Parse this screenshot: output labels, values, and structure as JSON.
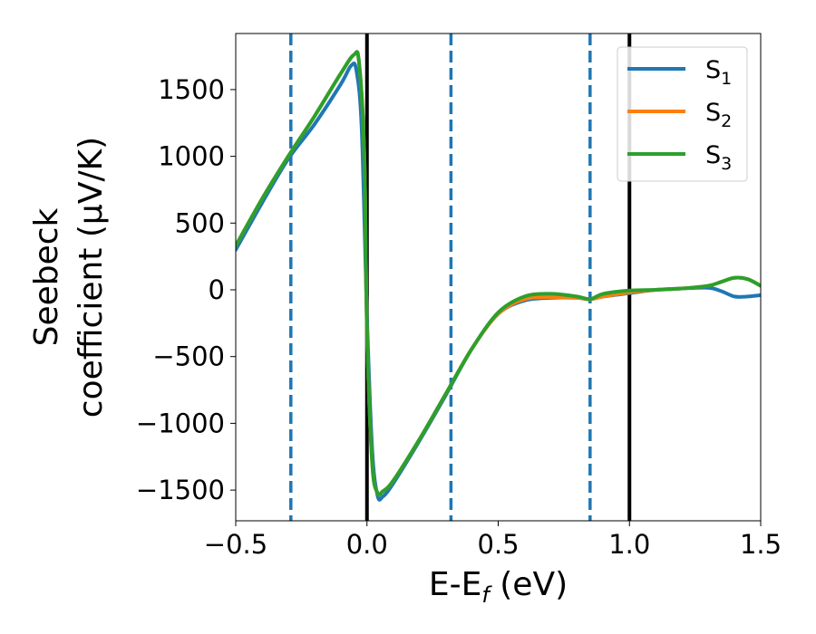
{
  "chart_data": {
    "type": "line",
    "xlabel": {
      "main": "E-E",
      "sub": "f",
      "units": " (eV)"
    },
    "ylabel": {
      "line1": "Seebeck",
      "line2": "coefficient  (μV/K)"
    },
    "xlim": [
      -0.5,
      1.5
    ],
    "ylim": [
      -1730,
      1920
    ],
    "xticks": [
      -0.5,
      0.0,
      0.5,
      1.0,
      1.5
    ],
    "xtick_labels": [
      "−0.5",
      "0.0",
      "0.5",
      "1.0",
      "1.5"
    ],
    "yticks": [
      -1500,
      -1000,
      -500,
      0,
      500,
      1000,
      1500
    ],
    "ytick_labels": [
      "−1500",
      "−1000",
      "−500",
      "0",
      "500",
      "1000",
      "1500"
    ],
    "grid": false,
    "legend_position": "top-right",
    "vlines": [
      {
        "x": -0.29,
        "style": "dashed",
        "color": "#1f77b4"
      },
      {
        "x": 0.0,
        "style": "solid",
        "color": "#000000"
      },
      {
        "x": 0.32,
        "style": "dashed",
        "color": "#1f77b4"
      },
      {
        "x": 0.85,
        "style": "dashed",
        "color": "#1f77b4"
      },
      {
        "x": 1.0,
        "style": "solid",
        "color": "#000000"
      }
    ],
    "series": [
      {
        "name": "S",
        "sub": "1",
        "color": "#1f77b4",
        "points": [
          [
            -0.5,
            300
          ],
          [
            -0.4,
            650
          ],
          [
            -0.3,
            980
          ],
          [
            -0.2,
            1240
          ],
          [
            -0.1,
            1540
          ],
          [
            -0.06,
            1680
          ],
          [
            -0.04,
            1640
          ],
          [
            -0.02,
            1200
          ],
          [
            0.0,
            -200
          ],
          [
            0.02,
            -1200
          ],
          [
            0.04,
            -1540
          ],
          [
            0.06,
            -1550
          ],
          [
            0.1,
            -1450
          ],
          [
            0.2,
            -1130
          ],
          [
            0.3,
            -790
          ],
          [
            0.4,
            -440
          ],
          [
            0.5,
            -180
          ],
          [
            0.6,
            -80
          ],
          [
            0.7,
            -60
          ],
          [
            0.8,
            -60
          ],
          [
            0.85,
            -70
          ],
          [
            0.9,
            -50
          ],
          [
            1.0,
            -25
          ],
          [
            1.1,
            0
          ],
          [
            1.2,
            10
          ],
          [
            1.3,
            15
          ],
          [
            1.35,
            -10
          ],
          [
            1.4,
            -50
          ],
          [
            1.45,
            -50
          ],
          [
            1.5,
            -40
          ]
        ]
      },
      {
        "name": "S",
        "sub": "2",
        "color": "#ff7f0e",
        "points": [
          [
            -0.5,
            330
          ],
          [
            -0.4,
            680
          ],
          [
            -0.3,
            1000
          ],
          [
            -0.2,
            1300
          ],
          [
            -0.1,
            1620
          ],
          [
            -0.05,
            1760
          ],
          [
            -0.03,
            1700
          ],
          [
            -0.01,
            1000
          ],
          [
            0.0,
            -300
          ],
          [
            0.02,
            -1300
          ],
          [
            0.04,
            -1520
          ],
          [
            0.06,
            -1510
          ],
          [
            0.1,
            -1430
          ],
          [
            0.2,
            -1120
          ],
          [
            0.3,
            -780
          ],
          [
            0.4,
            -440
          ],
          [
            0.5,
            -180
          ],
          [
            0.6,
            -70
          ],
          [
            0.7,
            -55
          ],
          [
            0.8,
            -60
          ],
          [
            0.85,
            -70
          ],
          [
            0.9,
            -50
          ],
          [
            1.0,
            -20
          ],
          [
            1.1,
            0
          ],
          [
            1.2,
            10
          ],
          [
            1.3,
            30
          ],
          [
            1.35,
            60
          ],
          [
            1.4,
            90
          ],
          [
            1.45,
            80
          ],
          [
            1.5,
            30
          ]
        ]
      },
      {
        "name": "S",
        "sub": "3",
        "color": "#2ca02c",
        "points": [
          [
            -0.5,
            330
          ],
          [
            -0.4,
            680
          ],
          [
            -0.3,
            1000
          ],
          [
            -0.2,
            1300
          ],
          [
            -0.1,
            1620
          ],
          [
            -0.05,
            1760
          ],
          [
            -0.03,
            1700
          ],
          [
            -0.01,
            1000
          ],
          [
            0.0,
            -300
          ],
          [
            0.02,
            -1300
          ],
          [
            0.04,
            -1520
          ],
          [
            0.06,
            -1510
          ],
          [
            0.1,
            -1430
          ],
          [
            0.2,
            -1120
          ],
          [
            0.3,
            -780
          ],
          [
            0.4,
            -440
          ],
          [
            0.5,
            -170
          ],
          [
            0.6,
            -50
          ],
          [
            0.7,
            -30
          ],
          [
            0.8,
            -50
          ],
          [
            0.85,
            -70
          ],
          [
            0.9,
            -30
          ],
          [
            1.0,
            -5
          ],
          [
            1.1,
            0
          ],
          [
            1.2,
            10
          ],
          [
            1.3,
            30
          ],
          [
            1.35,
            60
          ],
          [
            1.4,
            90
          ],
          [
            1.45,
            80
          ],
          [
            1.5,
            30
          ]
        ]
      }
    ]
  }
}
